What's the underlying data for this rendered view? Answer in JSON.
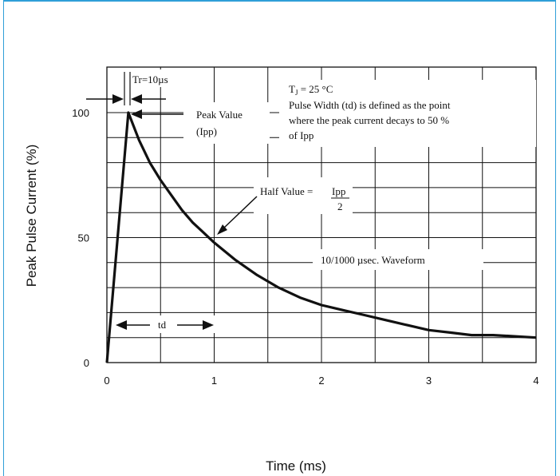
{
  "chart_data": {
    "type": "line",
    "title": "",
    "xlabel": "Time (ms)",
    "ylabel": "Peak Pulse Current (%)",
    "xlim": [
      0,
      4
    ],
    "ylim": [
      0,
      100
    ],
    "x_ticks": [
      "0",
      "1",
      "2",
      "3",
      "4"
    ],
    "y_ticks": [
      "0",
      "50",
      "100"
    ],
    "grid": true,
    "series": [
      {
        "x": [
          0,
          0.2,
          0.3,
          0.4,
          0.5,
          0.6,
          0.7,
          0.8,
          0.9,
          1.0,
          1.2,
          1.4,
          1.6,
          1.8,
          2.0,
          2.2,
          2.4,
          2.6,
          2.8,
          3.0,
          3.2,
          3.4,
          3.6,
          3.8,
          4.0
        ],
        "y": [
          0,
          100,
          89,
          80,
          73,
          67,
          61,
          56,
          52,
          48,
          41,
          35,
          30,
          26,
          23,
          21,
          19,
          17,
          15,
          13,
          12,
          11,
          11,
          10.5,
          10
        ]
      }
    ],
    "annotations": {
      "rise_label": "Tr=10µs",
      "peak_line1": "Peak Value",
      "peak_line2": "(Ipp)",
      "tj_label": "TJ = 25 °C",
      "pw_line1": "Pulse Width (td) is defined as the point",
      "pw_line2": "where the peak current decays to 50 %",
      "pw_line3": "of Ipp",
      "half_prefix": "Half Value =",
      "half_num": "Ipp",
      "half_den": "2",
      "td_label": "td",
      "waveform_label": "10/1000 µsec. Waveform"
    },
    "colors": {
      "frame": "#2f9fd8",
      "ink": "#111111"
    }
  }
}
